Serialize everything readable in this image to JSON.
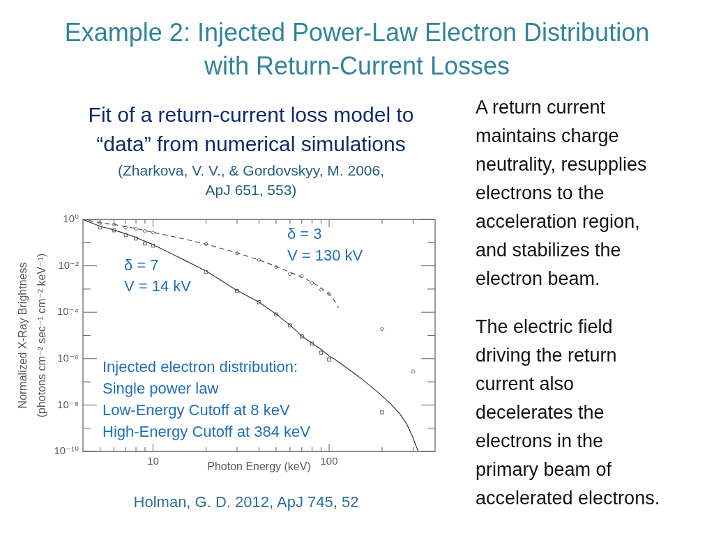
{
  "chart_data": {
    "type": "scatter",
    "title": "Example 2: Injected Power-Law Electron Distribution with Return-Current Losses",
    "subtitle": "Fit of a return-current loss model to “data” from numerical simulations",
    "xlabel": "Photon Energy (keV)",
    "ylabel": "Normalized X-Ray Brightness\n(photons cm⁻² sec⁻¹ cm⁻² keV⁻¹)",
    "log": "xy",
    "xlim": [
      4,
      400
    ],
    "xticks": [
      {
        "value": 5,
        "label": null
      },
      {
        "value": 6,
        "label": null
      },
      {
        "value": 7,
        "label": null
      },
      {
        "value": 8,
        "label": null
      },
      {
        "value": 9,
        "label": null
      },
      10,
      {
        "value": 20,
        "label": null
      },
      {
        "value": 30,
        "label": null
      },
      {
        "value": 40,
        "label": null
      },
      {
        "value": 50,
        "label": null
      },
      {
        "value": 60,
        "label": null
      },
      {
        "value": 70,
        "label": null
      },
      {
        "value": 80,
        "label": null
      },
      {
        "value": 90,
        "label": null
      },
      100,
      {
        "value": 200,
        "label": null
      },
      {
        "value": 300,
        "label": null
      }
    ],
    "ylim": [
      1e-10,
      1
    ],
    "yticks": [
      {
        "value": 1e-10,
        "label": "10⁻¹⁰"
      },
      {
        "value": 1e-09,
        "label": null
      },
      {
        "value": 1e-08,
        "label": "10⁻⁸"
      },
      {
        "value": 1e-07,
        "label": null
      },
      {
        "value": 1e-06,
        "label": "10⁻⁶"
      },
      {
        "value": 1e-05,
        "label": null
      },
      {
        "value": 0.0001,
        "label": "10⁻⁴"
      },
      {
        "value": 0.001,
        "label": null
      },
      {
        "value": 0.01,
        "label": "10⁻²"
      },
      {
        "value": 0.1,
        "label": null
      },
      {
        "value": 1,
        "label": "10⁰"
      }
    ],
    "series": [
      {
        "marker": "square",
        "color": "#555555",
        "x": [
          5,
          6,
          7,
          8,
          9,
          10,
          20,
          30,
          40,
          50,
          60,
          70,
          80,
          90,
          100,
          200
        ],
        "values": [
          0.45,
          0.34,
          0.21,
          0.15,
          0.092,
          0.074,
          0.0054,
          0.00082,
          0.00027,
          8e-05,
          2.7e-05,
          9.1e-06,
          4.5e-06,
          1.8e-06,
          9.1e-07,
          4.8e-09
        ]
      },
      {
        "type": "line",
        "color": "#333333",
        "x": [
          4,
          5,
          6,
          7,
          8,
          10,
          15,
          20,
          30,
          40,
          50,
          60,
          70,
          80,
          90,
          100,
          107,
          129,
          155,
          186,
          223,
          252,
          276,
          298,
          312,
          321
        ],
        "values": [
          1,
          0.51,
          0.35,
          0.24,
          0.165,
          0.082,
          0.018,
          0.006,
          0.00087,
          0.00027,
          8.3e-05,
          2.8e-05,
          9.4e-06,
          4.6e-06,
          2.5e-06,
          1.3e-06,
          9.7e-07,
          3.5e-07,
          1.25e-07,
          4e-08,
          1.15e-08,
          4.2e-09,
          1.5e-09,
          4.3e-10,
          1.7e-10,
          1e-10
        ]
      },
      {
        "marker": "diamond",
        "color": "#555555",
        "x": [
          5,
          6,
          7,
          8,
          9,
          10,
          20,
          30,
          40,
          50,
          60,
          70,
          80,
          90,
          100,
          200,
          300
        ],
        "values": [
          0.71,
          0.61,
          0.45,
          0.38,
          0.31,
          0.27,
          0.088,
          0.035,
          0.018,
          0.0089,
          0.0045,
          0.0036,
          0.0018,
          0.00092,
          0.00063,
          1.9e-05,
          2.8e-07
        ]
      },
      {
        "type": "line",
        "line_style": "dashed",
        "color": "#555555",
        "x": [
          4,
          5,
          6,
          7,
          8,
          9,
          10,
          15,
          20,
          30,
          40,
          50,
          60,
          70,
          80,
          90,
          100,
          105,
          110,
          113
        ],
        "values": [
          1,
          0.72,
          0.6,
          0.49,
          0.41,
          0.33,
          0.28,
          0.145,
          0.086,
          0.036,
          0.018,
          0.0095,
          0.0053,
          0.0032,
          0.002,
          0.0011,
          0.0006,
          0.00039,
          0.00023,
          0.000155
        ]
      }
    ],
    "annotations": [
      "(Zharkova, V. V., & Gordovskyy, M. 2006, ApJ 651, 553)",
      "Injected electron distribution:",
      "Single power law",
      "Low-Energy Cutoff at 8 keV",
      "High-Energy Cutoff at 384 keV",
      "Holman, G. D. 2012, ApJ 745, 52",
      "A return current maintains charge neutrality, resupplies electrons to the acceleration region, and stabilizes the electron beam.",
      "The electric field driving the return current also decelerates the electrons in the primary beam of accelerated electrons.",
      "δ = 7",
      "V = 14 kV",
      "δ = 3",
      "V = 130 kV"
    ]
  }
}
